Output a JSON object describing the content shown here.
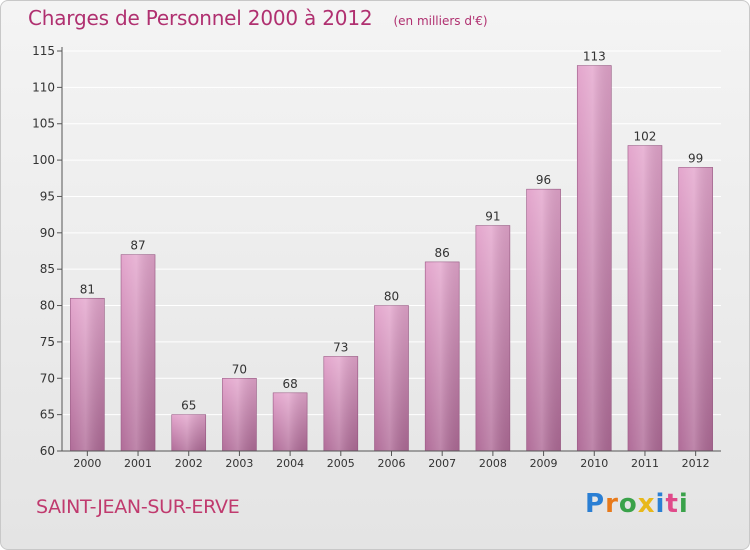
{
  "header": {
    "title": "Charges de Personnel 2000 à 2012",
    "subtitle": "(en milliers d'€)"
  },
  "footer": {
    "commune": "SAINT-JEAN-SUR-ERVE",
    "logo_text": "Proxiti",
    "logo_letters": [
      {
        "char": "P",
        "color": "#2a7fd4"
      },
      {
        "char": "r",
        "color": "#e87a1a"
      },
      {
        "char": "o",
        "color": "#3aa24a"
      },
      {
        "char": "x",
        "color": "#e8b81a"
      },
      {
        "char": "i",
        "color": "#2a7fd4"
      },
      {
        "char": "t",
        "color": "#e04a8a"
      },
      {
        "char": "i",
        "color": "#3aa24a"
      }
    ]
  },
  "colors": {
    "bar_light": "#e4a6cd",
    "bar_dark": "#b06c98",
    "accent": "#b03070"
  },
  "chart_data": {
    "type": "bar",
    "title": "Charges de Personnel 2000 à 2012",
    "subtitle": "(en milliers d'€)",
    "categories": [
      "2000",
      "2001",
      "2002",
      "2003",
      "2004",
      "2005",
      "2006",
      "2007",
      "2008",
      "2009",
      "2010",
      "2011",
      "2012"
    ],
    "values": [
      81,
      87,
      65,
      70,
      68,
      73,
      80,
      86,
      91,
      96,
      113,
      102,
      99
    ],
    "ylim": [
      60,
      115
    ],
    "yticks": [
      60,
      65,
      70,
      75,
      80,
      85,
      90,
      95,
      100,
      105,
      110,
      115
    ],
    "xlabel": "",
    "ylabel": "",
    "grid": true,
    "data_labels": true
  }
}
